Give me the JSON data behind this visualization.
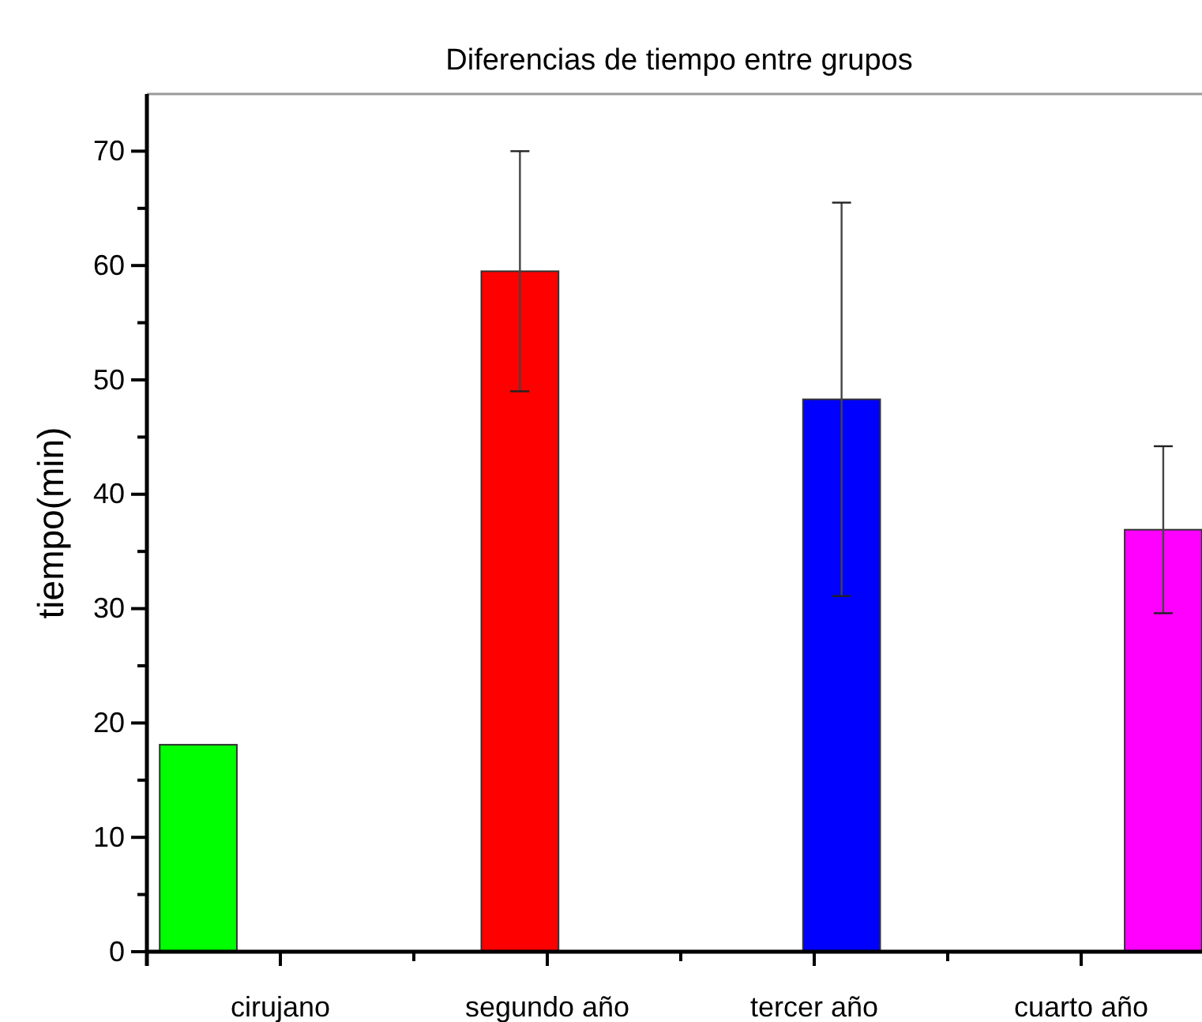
{
  "chart_data": {
    "type": "bar",
    "title": "Diferencias de tiempo entre grupos",
    "ylabel": "tiempo(min)",
    "categories": [
      "cirujano",
      "segundo año",
      "tercer año",
      "cuarto año"
    ],
    "series": [
      {
        "color": "#00ff00",
        "values": [
          18.1,
          null,
          null,
          null
        ],
        "errors": [
          null,
          null,
          null,
          null
        ]
      },
      {
        "color": "#ff0000",
        "values": [
          null,
          59.5,
          null,
          null
        ],
        "errors": [
          null,
          10.5,
          null,
          null
        ]
      },
      {
        "color": "#0000ff",
        "values": [
          null,
          null,
          48.3,
          null
        ],
        "errors": [
          null,
          null,
          17.2,
          null
        ]
      },
      {
        "color": "#ff00ff",
        "values": [
          null,
          null,
          null,
          36.9
        ],
        "errors": [
          null,
          null,
          null,
          7.3
        ]
      }
    ],
    "ylim": [
      0,
      75
    ],
    "yticks": [
      0,
      {
        "value": 5,
        "label": null
      },
      10,
      {
        "value": 15,
        "label": null
      },
      20,
      {
        "value": 25,
        "label": null
      },
      30,
      {
        "value": 35,
        "label": null
      },
      40,
      {
        "value": 45,
        "label": null
      },
      50,
      {
        "value": 55,
        "label": null
      },
      60,
      {
        "value": 65,
        "label": null
      },
      70
    ]
  }
}
